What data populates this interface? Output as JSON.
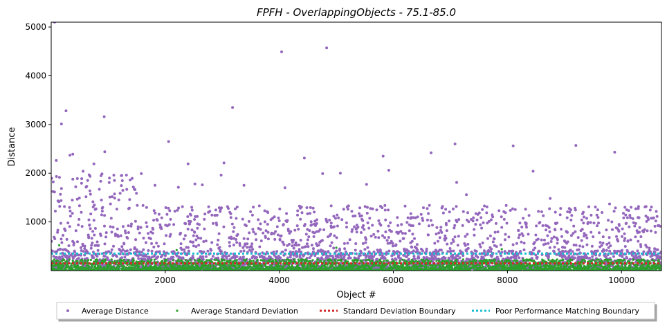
{
  "chart_data": {
    "type": "scatter",
    "title": "FPFH - OverlappingObjects - 75.1-85.0",
    "xlabel": "Object #",
    "ylabel": "Distance",
    "xlim": [
      1,
      10700
    ],
    "ylim": [
      0,
      5100
    ],
    "x_ticks": [
      2000,
      4000,
      6000,
      8000,
      10000
    ],
    "y_ticks": [
      1000,
      2000,
      3000,
      4000,
      5000
    ],
    "grid": false,
    "legend_placement": "bottom-center, below axes",
    "series": [
      {
        "name": "Average Distance",
        "kind": "points",
        "color": "#9467bd",
        "outliers": [
          [
            60,
            5100
          ],
          [
            90,
            2260
          ],
          [
            120,
            1430
          ],
          [
            150,
            1320
          ],
          [
            180,
            3010
          ],
          [
            260,
            3280
          ],
          [
            330,
            2370
          ],
          [
            380,
            2390
          ],
          [
            460,
            1890
          ],
          [
            560,
            2040
          ],
          [
            640,
            1850
          ],
          [
            750,
            2190
          ],
          [
            930,
            3160
          ],
          [
            940,
            2440
          ],
          [
            1040,
            1370
          ],
          [
            1230,
            1950
          ],
          [
            1320,
            1960
          ],
          [
            1580,
            1990
          ],
          [
            1820,
            1750
          ],
          [
            2060,
            2650
          ],
          [
            2230,
            1710
          ],
          [
            2400,
            2190
          ],
          [
            2520,
            1780
          ],
          [
            2650,
            1760
          ],
          [
            2980,
            1960
          ],
          [
            3030,
            2210
          ],
          [
            3180,
            3350
          ],
          [
            3380,
            1750
          ],
          [
            3650,
            1330
          ],
          [
            4040,
            4490
          ],
          [
            4100,
            1700
          ],
          [
            4440,
            2310
          ],
          [
            4760,
            1990
          ],
          [
            4830,
            4570
          ],
          [
            4910,
            1330
          ],
          [
            5070,
            2000
          ],
          [
            5530,
            1770
          ],
          [
            5820,
            2350
          ],
          [
            5920,
            2060
          ],
          [
            6660,
            2420
          ],
          [
            7080,
            2600
          ],
          [
            7110,
            1810
          ],
          [
            7280,
            1560
          ],
          [
            8100,
            2560
          ],
          [
            8450,
            2040
          ],
          [
            8750,
            1480
          ],
          [
            9200,
            2570
          ],
          [
            9790,
            1370
          ],
          [
            9880,
            2430
          ],
          [
            10060,
            1300
          ],
          [
            10250,
            1270
          ],
          [
            10460,
            1090
          ],
          [
            10600,
            1020
          ]
        ],
        "bulk": {
          "x_range": [
            1,
            10700
          ],
          "y_typical_range": [
            20,
            1300
          ],
          "approx_count": 3000
        }
      },
      {
        "name": "Average Standard Deviation",
        "kind": "points",
        "color": "#2ca02c",
        "outliers": [
          [
            140,
            520
          ],
          [
            2200,
            420
          ],
          [
            5000,
            470
          ],
          [
            7900,
            440
          ]
        ],
        "bulk": {
          "x_range": [
            1,
            10700
          ],
          "y_typical_range": [
            0,
            250
          ],
          "approx_count": 3000
        }
      },
      {
        "name": "Standard Deviation Boundary",
        "kind": "hline",
        "style": "dotted",
        "color": "#d62728",
        "y": 150
      },
      {
        "name": "Poor Performance Matching Boundary",
        "kind": "hline",
        "style": "dotted",
        "color": "#17becf",
        "y": 350
      }
    ]
  }
}
